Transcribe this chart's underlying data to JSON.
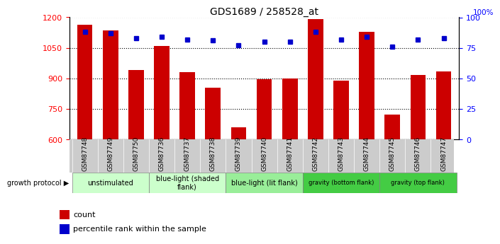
{
  "title": "GDS1689 / 258528_at",
  "samples": [
    "GSM87748",
    "GSM87749",
    "GSM87750",
    "GSM87736",
    "GSM87737",
    "GSM87738",
    "GSM87739",
    "GSM87740",
    "GSM87741",
    "GSM87742",
    "GSM87743",
    "GSM87744",
    "GSM87745",
    "GSM87746",
    "GSM87747"
  ],
  "counts": [
    1165,
    1135,
    940,
    1060,
    930,
    855,
    660,
    895,
    900,
    1190,
    890,
    1130,
    720,
    915,
    935
  ],
  "percentiles": [
    88,
    87,
    83,
    84,
    82,
    81,
    77,
    80,
    80,
    88,
    82,
    84,
    76,
    82,
    83
  ],
  "ylim_left": [
    600,
    1200
  ],
  "ylim_right": [
    0,
    100
  ],
  "yticks_left": [
    600,
    750,
    900,
    1050,
    1200
  ],
  "yticks_right": [
    0,
    25,
    50,
    75,
    100
  ],
  "bar_color": "#cc0000",
  "dot_color": "#0000cc",
  "groups": [
    {
      "label": "unstimulated",
      "indices": [
        0,
        1,
        2
      ],
      "color": "#ccffcc"
    },
    {
      "label": "blue-light (shaded\nflank)",
      "indices": [
        3,
        4,
        5
      ],
      "color": "#ccffcc"
    },
    {
      "label": "blue-light (lit flank)",
      "indices": [
        6,
        7,
        8
      ],
      "color": "#99ee99"
    },
    {
      "label": "gravity (bottom flank)",
      "indices": [
        9,
        10,
        11
      ],
      "color": "#44cc44"
    },
    {
      "label": "gravity (top flank)",
      "indices": [
        12,
        13,
        14
      ],
      "color": "#44cc44"
    }
  ],
  "group_colors_actual": [
    "#ccffcc",
    "#ccffcc",
    "#99ee99",
    "#44cc44",
    "#44cc44"
  ],
  "sample_row_color": "#cccccc",
  "legend_items": [
    {
      "color": "#cc0000",
      "label": "count"
    },
    {
      "color": "#0000cc",
      "label": "percentile rank within the sample"
    }
  ]
}
